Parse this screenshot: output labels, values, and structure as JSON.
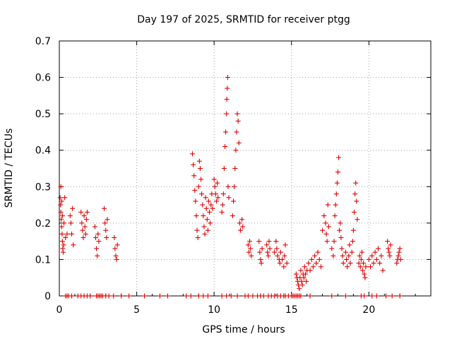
{
  "chart_data": {
    "type": "scatter",
    "title": "Day 197 of 2025, SRMTID for receiver ptgg",
    "xlabel": "GPS time / hours",
    "ylabel": "SRMTID / TECUs",
    "xlim": [
      0,
      24
    ],
    "ylim": [
      0,
      0.7
    ],
    "xticks": [
      0,
      5,
      10,
      15,
      20
    ],
    "xtick_labels": [
      "0",
      "5",
      "10",
      "15",
      "20"
    ],
    "yticks": [
      0,
      0.1,
      0.2,
      0.3,
      0.4,
      0.5,
      0.6,
      0.7
    ],
    "ytick_labels": [
      "0",
      "0.1",
      "0.2",
      "0.3",
      "0.4",
      "0.5",
      "0.6",
      "0.7"
    ],
    "grid": true,
    "marker": "+",
    "series": [
      {
        "name": "SRMTID",
        "color": "#e00000",
        "points": [
          [
            0.05,
            0.27
          ],
          [
            0.08,
            0.25
          ],
          [
            0.1,
            0.23
          ],
          [
            0.12,
            0.21
          ],
          [
            0.15,
            0.19
          ],
          [
            0.18,
            0.17
          ],
          [
            0.2,
            0.15
          ],
          [
            0.22,
            0.13
          ],
          [
            0.25,
            0.12
          ],
          [
            0.28,
            0.14
          ],
          [
            0.1,
            0.3
          ],
          [
            0.15,
            0.26
          ],
          [
            0.2,
            0.22
          ],
          [
            0.3,
            0.2
          ],
          [
            0.35,
            0.27
          ],
          [
            0.4,
            0.16
          ],
          [
            0.5,
            0.17
          ],
          [
            0.7,
            0.22
          ],
          [
            0.75,
            0.2
          ],
          [
            0.8,
            0.17
          ],
          [
            0.85,
            0.24
          ],
          [
            0.9,
            0.14
          ],
          [
            1.4,
            0.23
          ],
          [
            1.45,
            0.2
          ],
          [
            1.5,
            0.18
          ],
          [
            1.55,
            0.16
          ],
          [
            1.6,
            0.22
          ],
          [
            1.65,
            0.19
          ],
          [
            1.7,
            0.17
          ],
          [
            1.75,
            0.21
          ],
          [
            1.8,
            0.23
          ],
          [
            2.3,
            0.19
          ],
          [
            2.35,
            0.16
          ],
          [
            2.4,
            0.13
          ],
          [
            2.45,
            0.11
          ],
          [
            2.5,
            0.17
          ],
          [
            2.55,
            0.15
          ],
          [
            2.9,
            0.24
          ],
          [
            2.95,
            0.2
          ],
          [
            3.0,
            0.18
          ],
          [
            3.05,
            0.16
          ],
          [
            3.1,
            0.21
          ],
          [
            3.55,
            0.16
          ],
          [
            3.6,
            0.13
          ],
          [
            3.65,
            0.11
          ],
          [
            3.7,
            0.1
          ],
          [
            3.75,
            0.14
          ],
          [
            8.6,
            0.39
          ],
          [
            8.65,
            0.36
          ],
          [
            8.7,
            0.33
          ],
          [
            8.75,
            0.29
          ],
          [
            8.8,
            0.26
          ],
          [
            8.85,
            0.22
          ],
          [
            8.9,
            0.18
          ],
          [
            8.95,
            0.16
          ],
          [
            9.0,
            0.3
          ],
          [
            9.05,
            0.37
          ],
          [
            9.1,
            0.35
          ],
          [
            9.15,
            0.32
          ],
          [
            9.2,
            0.28
          ],
          [
            9.25,
            0.25
          ],
          [
            9.3,
            0.22
          ],
          [
            9.35,
            0.19
          ],
          [
            9.4,
            0.17
          ],
          [
            9.45,
            0.27
          ],
          [
            9.5,
            0.24
          ],
          [
            9.55,
            0.21
          ],
          [
            9.6,
            0.18
          ],
          [
            9.65,
            0.26
          ],
          [
            9.7,
            0.23
          ],
          [
            9.75,
            0.2
          ],
          [
            9.8,
            0.25
          ],
          [
            9.85,
            0.28
          ],
          [
            9.9,
            0.24
          ],
          [
            10.0,
            0.32
          ],
          [
            10.05,
            0.3
          ],
          [
            10.1,
            0.28
          ],
          [
            10.15,
            0.26
          ],
          [
            10.2,
            0.31
          ],
          [
            10.25,
            0.27
          ],
          [
            10.5,
            0.23
          ],
          [
            10.55,
            0.25
          ],
          [
            10.6,
            0.28
          ],
          [
            10.65,
            0.35
          ],
          [
            10.7,
            0.41
          ],
          [
            10.75,
            0.45
          ],
          [
            10.8,
            0.5
          ],
          [
            10.82,
            0.54
          ],
          [
            10.85,
            0.57
          ],
          [
            10.88,
            0.6
          ],
          [
            10.9,
            0.3
          ],
          [
            10.95,
            0.27
          ],
          [
            11.2,
            0.22
          ],
          [
            11.25,
            0.26
          ],
          [
            11.3,
            0.3
          ],
          [
            11.35,
            0.35
          ],
          [
            11.4,
            0.4
          ],
          [
            11.45,
            0.45
          ],
          [
            11.5,
            0.5
          ],
          [
            11.55,
            0.48
          ],
          [
            11.6,
            0.42
          ],
          [
            11.65,
            0.2
          ],
          [
            11.7,
            0.18
          ],
          [
            11.8,
            0.21
          ],
          [
            11.85,
            0.19
          ],
          [
            12.2,
            0.14
          ],
          [
            12.25,
            0.12
          ],
          [
            12.3,
            0.15
          ],
          [
            12.35,
            0.13
          ],
          [
            12.4,
            0.11
          ],
          [
            12.9,
            0.15
          ],
          [
            12.95,
            0.12
          ],
          [
            13.0,
            0.1
          ],
          [
            13.05,
            0.09
          ],
          [
            13.1,
            0.13
          ],
          [
            13.4,
            0.14
          ],
          [
            13.45,
            0.12
          ],
          [
            13.5,
            0.11
          ],
          [
            13.55,
            0.15
          ],
          [
            13.6,
            0.13
          ],
          [
            13.9,
            0.12
          ],
          [
            14.0,
            0.15
          ],
          [
            14.05,
            0.13
          ],
          [
            14.1,
            0.11
          ],
          [
            14.2,
            0.1
          ],
          [
            14.25,
            0.09
          ],
          [
            14.3,
            0.12
          ],
          [
            14.4,
            0.1
          ],
          [
            14.5,
            0.08
          ],
          [
            14.55,
            0.11
          ],
          [
            14.6,
            0.14
          ],
          [
            14.7,
            0.09
          ],
          [
            15.3,
            0.06
          ],
          [
            15.35,
            0.05
          ],
          [
            15.4,
            0.04
          ],
          [
            15.45,
            0.03
          ],
          [
            15.5,
            0.02
          ],
          [
            15.55,
            0.05
          ],
          [
            15.6,
            0.07
          ],
          [
            15.65,
            0.04
          ],
          [
            15.7,
            0.03
          ],
          [
            15.75,
            0.06
          ],
          [
            15.8,
            0.05
          ],
          [
            15.85,
            0.08
          ],
          [
            15.9,
            0.06
          ],
          [
            15.95,
            0.04
          ],
          [
            16.0,
            0.07
          ],
          [
            16.1,
            0.09
          ],
          [
            16.2,
            0.07
          ],
          [
            16.3,
            0.1
          ],
          [
            16.4,
            0.08
          ],
          [
            16.5,
            0.11
          ],
          [
            16.6,
            0.09
          ],
          [
            16.7,
            0.12
          ],
          [
            16.8,
            0.1
          ],
          [
            16.9,
            0.08
          ],
          [
            17.0,
            0.18
          ],
          [
            17.1,
            0.22
          ],
          [
            17.2,
            0.2
          ],
          [
            17.25,
            0.17
          ],
          [
            17.3,
            0.15
          ],
          [
            17.35,
            0.25
          ],
          [
            17.4,
            0.19
          ],
          [
            17.6,
            0.13
          ],
          [
            17.7,
            0.11
          ],
          [
            17.75,
            0.15
          ],
          [
            17.8,
            0.22
          ],
          [
            17.85,
            0.25
          ],
          [
            17.9,
            0.28
          ],
          [
            17.95,
            0.31
          ],
          [
            18.0,
            0.34
          ],
          [
            18.05,
            0.38
          ],
          [
            18.1,
            0.18
          ],
          [
            18.15,
            0.2
          ],
          [
            18.2,
            0.16
          ],
          [
            18.25,
            0.13
          ],
          [
            18.3,
            0.11
          ],
          [
            18.35,
            0.09
          ],
          [
            18.5,
            0.12
          ],
          [
            18.55,
            0.1
          ],
          [
            18.6,
            0.08
          ],
          [
            18.7,
            0.11
          ],
          [
            18.75,
            0.14
          ],
          [
            18.8,
            0.09
          ],
          [
            18.9,
            0.12
          ],
          [
            18.95,
            0.15
          ],
          [
            19.0,
            0.18
          ],
          [
            19.05,
            0.23
          ],
          [
            19.1,
            0.28
          ],
          [
            19.15,
            0.31
          ],
          [
            19.2,
            0.26
          ],
          [
            19.25,
            0.21
          ],
          [
            19.35,
            0.09
          ],
          [
            19.4,
            0.11
          ],
          [
            19.45,
            0.08
          ],
          [
            19.5,
            0.1
          ],
          [
            19.55,
            0.12
          ],
          [
            19.6,
            0.07
          ],
          [
            19.65,
            0.09
          ],
          [
            19.7,
            0.06
          ],
          [
            19.75,
            0.05
          ],
          [
            19.8,
            0.08
          ],
          [
            20.0,
            0.1
          ],
          [
            20.1,
            0.08
          ],
          [
            20.2,
            0.11
          ],
          [
            20.3,
            0.09
          ],
          [
            20.4,
            0.12
          ],
          [
            20.5,
            0.1
          ],
          [
            20.6,
            0.13
          ],
          [
            20.7,
            0.09
          ],
          [
            20.8,
            0.11
          ],
          [
            20.9,
            0.07
          ],
          [
            21.2,
            0.15
          ],
          [
            21.25,
            0.13
          ],
          [
            21.3,
            0.12
          ],
          [
            21.35,
            0.11
          ],
          [
            21.4,
            0.14
          ],
          [
            21.8,
            0.09
          ],
          [
            21.85,
            0.1
          ],
          [
            21.9,
            0.11
          ],
          [
            21.95,
            0.12
          ],
          [
            22.0,
            0.13
          ],
          [
            22.05,
            0.1
          ]
        ]
      }
    ],
    "zero_points_x": [
      0.4,
      0.5,
      0.6,
      0.8,
      1.2,
      1.4,
      1.6,
      1.8,
      2.0,
      2.4,
      2.5,
      2.6,
      2.7,
      2.8,
      3.0,
      3.2,
      3.5,
      4.0,
      4.5,
      5.5,
      6.5,
      7.0,
      8.2,
      8.5,
      9.0,
      9.3,
      9.6,
      10.5,
      10.8,
      11.1,
      11.5,
      12.0,
      12.2,
      12.5,
      12.8,
      13.0,
      13.2,
      13.5,
      13.7,
      13.9,
      14.1,
      14.3,
      14.5,
      14.6,
      14.8,
      15.0,
      15.1,
      15.2,
      15.3,
      15.4,
      15.5,
      15.6,
      16.2,
      17.6,
      18.5,
      19.5,
      19.7,
      20.2,
      20.5,
      21.1,
      21.5,
      22.0
    ]
  }
}
